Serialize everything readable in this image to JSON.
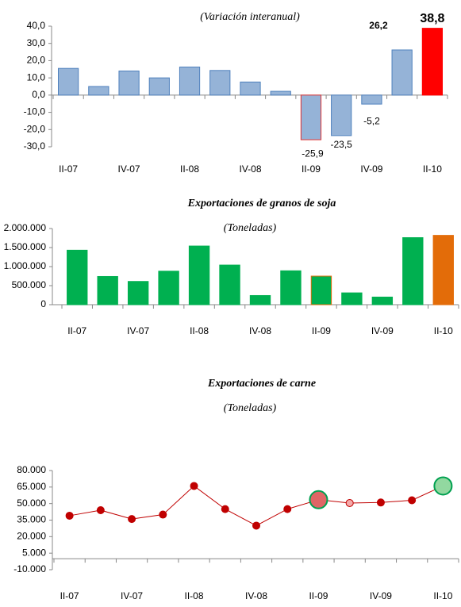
{
  "chart_data": [
    {
      "type": "bar",
      "subtitle": "(Variación interanual)",
      "categories": [
        "II-07",
        null,
        "IV-07",
        null,
        "II-08",
        null,
        "IV-08",
        null,
        "II-09",
        null,
        "IV-09",
        null,
        "II-10"
      ],
      "values": [
        15.5,
        5,
        14,
        10,
        16.3,
        14.3,
        7.6,
        2.2,
        -25.9,
        -23.5,
        -5.2,
        26.2,
        38.8
      ],
      "value_labels": [
        null,
        null,
        null,
        null,
        null,
        null,
        null,
        null,
        "-25,9",
        "-23,5",
        "-5,2",
        "26,2",
        "38,8"
      ],
      "value_label_colors": [
        "#1f6fc0",
        "#1f6fc0",
        "#1f6fc0",
        "#1f6fc0",
        "#1f6fc0",
        "#1f6fc0",
        "#1f6fc0",
        "#1f6fc0",
        "#1f6fc0",
        "#1f6fc0",
        "#1f6fc0",
        "#1f6fc0",
        "#ff0000"
      ],
      "colors": [
        "#95b3d7",
        "#95b3d7",
        "#95b3d7",
        "#95b3d7",
        "#95b3d7",
        "#95b3d7",
        "#95b3d7",
        "#95b3d7",
        "#95b3d7",
        "#95b3d7",
        "#95b3d7",
        "#95b3d7",
        "#ff0000"
      ],
      "border_colors": [
        "#4f81bd",
        "#4f81bd",
        "#4f81bd",
        "#4f81bd",
        "#4f81bd",
        "#4f81bd",
        "#4f81bd",
        "#4f81bd",
        "#e03030",
        "#4f81bd",
        "#4f81bd",
        "#4f81bd",
        "#ff0000"
      ],
      "ylim": [
        -30,
        40
      ],
      "yticks": [
        {
          "value": -30,
          "label": "-30,0"
        },
        {
          "value": -20,
          "label": "-20,0"
        },
        {
          "value": -10,
          "label": "-10,0"
        },
        {
          "value": 0,
          "label": "0,0"
        },
        {
          "value": 10,
          "label": "10,0"
        },
        {
          "value": 20,
          "label": "20,0"
        },
        {
          "value": 30,
          "label": "30,0"
        },
        {
          "value": 40,
          "label": "40,0"
        }
      ]
    },
    {
      "type": "bar",
      "title": "Exportaciones de granos de soja",
      "subtitle": "(Toneladas)",
      "categories": [
        "II-07",
        null,
        "IV-07",
        null,
        "II-08",
        null,
        "IV-08",
        null,
        "II-09",
        null,
        "IV-09",
        null,
        "II-10"
      ],
      "values": [
        1430000,
        740000,
        610000,
        880000,
        1540000,
        1040000,
        240000,
        890000,
        750000,
        310000,
        200000,
        1760000,
        1820000
      ],
      "colors": [
        "#00b050",
        "#00b050",
        "#00b050",
        "#00b050",
        "#00b050",
        "#00b050",
        "#00b050",
        "#00b050",
        "#00b050",
        "#00b050",
        "#00b050",
        "#00b050",
        "#e36c09"
      ],
      "border_colors": [
        "#00b050",
        "#00b050",
        "#00b050",
        "#00b050",
        "#00b050",
        "#00b050",
        "#00b050",
        "#00b050",
        "#e36c09",
        "#00b050",
        "#00b050",
        "#00b050",
        "#e36c09"
      ],
      "ylim": [
        0,
        2000000
      ],
      "yticks": [
        0,
        {
          "value": 500000,
          "label": "500.000"
        },
        {
          "value": 1000000,
          "label": "1.000.000"
        },
        {
          "value": 1500000,
          "label": "1.500.000"
        },
        {
          "value": 2000000,
          "label": "2.000.000"
        }
      ]
    },
    {
      "type": "line",
      "title": "Exportaciones de carne",
      "subtitle": "(Toneladas)",
      "categories": [
        "II-07",
        null,
        "IV-07",
        null,
        "II-08",
        null,
        "IV-08",
        null,
        "II-09",
        null,
        "IV-09",
        null,
        "II-10"
      ],
      "values": [
        39000,
        44000,
        36000,
        40000,
        66000,
        45000,
        30000,
        45000,
        53500,
        50500,
        51000,
        53000,
        66000
      ],
      "color": "#c00000",
      "point_colors": [
        "#c00000",
        "#c00000",
        "#c00000",
        "#c00000",
        "#c00000",
        "#c00000",
        "#c00000",
        "#c00000",
        "#e06666",
        "#f4aaaa",
        "#c00000",
        "#c00000",
        "#92d8a0"
      ],
      "ylim": [
        -10000,
        80000
      ],
      "yticks": [
        {
          "value": -10000,
          "label": "-10.000"
        },
        {
          "value": 5000,
          "label": "5.000"
        },
        {
          "value": 20000,
          "label": "20.000"
        },
        {
          "value": 35000,
          "label": "35.000"
        },
        {
          "value": 50000,
          "label": "50.000"
        },
        {
          "value": 65000,
          "label": "65.000"
        },
        {
          "value": 80000,
          "label": "80.000"
        }
      ]
    }
  ]
}
